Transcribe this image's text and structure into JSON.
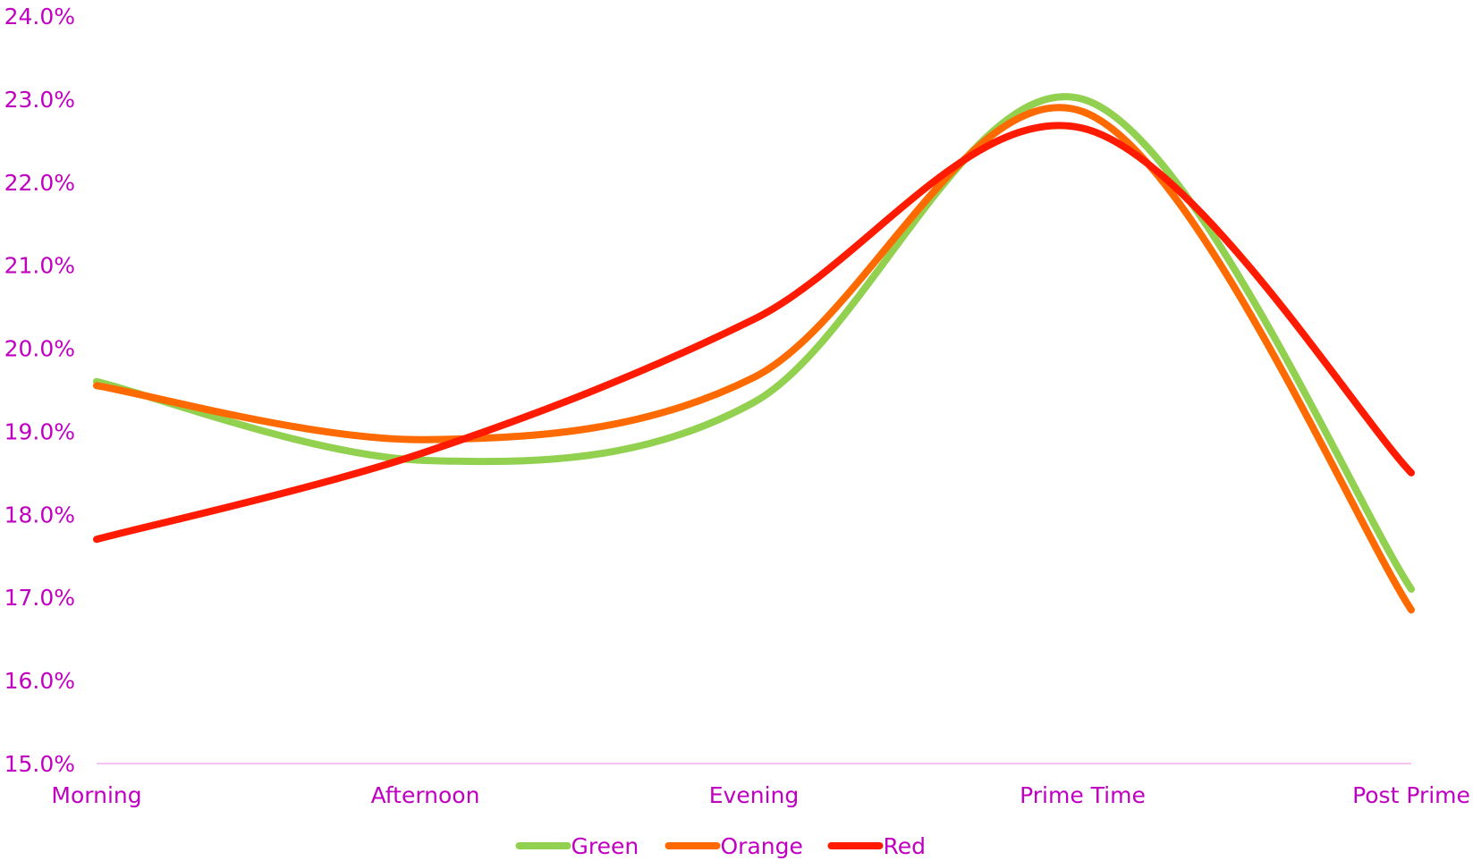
{
  "chart_data": {
    "type": "line",
    "smooth": true,
    "categories": [
      "Morning",
      "Afternoon",
      "Evening",
      "Prime Time",
      "Post Prime"
    ],
    "y_tick_labels": [
      "15.0%",
      "16.0%",
      "17.0%",
      "18.0%",
      "19.0%",
      "20.0%",
      "21.0%",
      "22.0%",
      "23.0%",
      "24.0%"
    ],
    "ylim": [
      15.0,
      24.0
    ],
    "y_unit": "%",
    "grid": false,
    "legend_position": "bottom",
    "series": [
      {
        "name": "Green",
        "color": "#92d050",
        "values": [
          19.6,
          18.65,
          19.35,
          23.0,
          17.1
        ]
      },
      {
        "name": "Orange",
        "color": "#ff6a00",
        "values": [
          19.55,
          18.9,
          19.65,
          22.85,
          16.85
        ]
      },
      {
        "name": "Red",
        "color": "#ff1a00",
        "values": [
          17.7,
          18.75,
          20.35,
          22.65,
          18.5
        ]
      }
    ],
    "text_color": "#c000c0",
    "axis_color": "#f0b0f0"
  }
}
